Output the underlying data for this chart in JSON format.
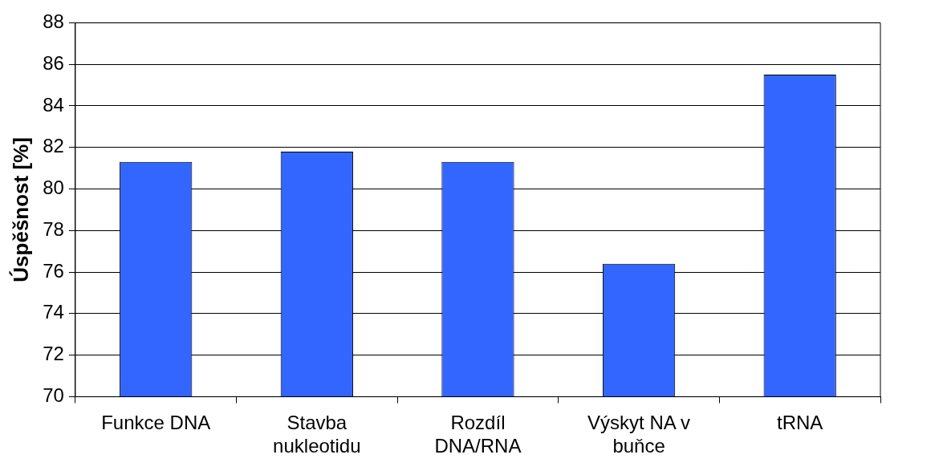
{
  "chart_data": {
    "type": "bar",
    "ylabel": "Úspěšnost [%]",
    "categories": [
      "Funkce DNA",
      "Stavba nukleotidu",
      "Rozdíl DNA/RNA",
      "Výskyt NA v buňce",
      "tRNA"
    ],
    "values": [
      81.3,
      81.8,
      81.3,
      76.4,
      85.5
    ],
    "color": "#3366ff",
    "ylim": [
      70,
      88
    ],
    "yticks": [
      70,
      72,
      74,
      76,
      78,
      80,
      82,
      84,
      86,
      88
    ],
    "grid": "y",
    "legend": false
  }
}
